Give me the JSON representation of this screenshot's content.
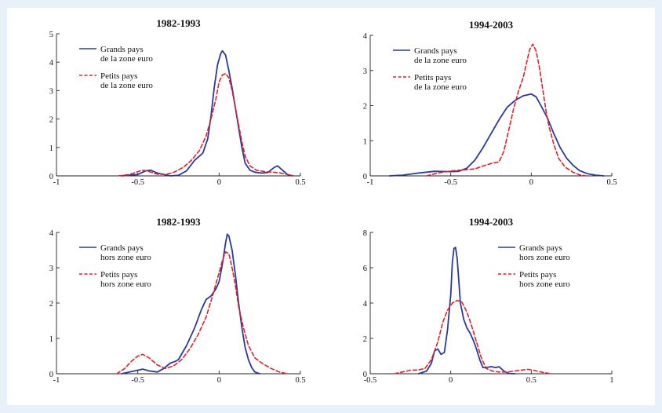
{
  "colors": {
    "series_solid": "#2a3a9c",
    "series_dashed": "#e0202a",
    "background": "#e8f0fa"
  },
  "chart_data": [
    {
      "type": "line",
      "title": "1982-1993",
      "xlim": [
        -1,
        0.5
      ],
      "ylim": [
        0,
        5
      ],
      "x_ticks": [
        "-1",
        "-0.5",
        "0",
        "0.5"
      ],
      "y_ticks": [
        "0",
        "1",
        "2",
        "3",
        "4",
        "5"
      ],
      "legend_position": "top-left",
      "series": [
        {
          "name": "Grands pays de la zone euro",
          "legend_lines": [
            "Grands pays",
            "de la zone euro"
          ],
          "style": "solid",
          "points": [
            [
              -0.6,
              0
            ],
            [
              -0.5,
              0.05
            ],
            [
              -0.45,
              0.18
            ],
            [
              -0.42,
              0.2
            ],
            [
              -0.38,
              0.1
            ],
            [
              -0.3,
              0
            ],
            [
              -0.25,
              0.02
            ],
            [
              -0.2,
              0.18
            ],
            [
              -0.15,
              0.55
            ],
            [
              -0.1,
              0.8
            ],
            [
              -0.07,
              1.3
            ],
            [
              -0.05,
              2.1
            ],
            [
              -0.03,
              3.1
            ],
            [
              -0.01,
              3.9
            ],
            [
              0.01,
              4.3
            ],
            [
              0.02,
              4.4
            ],
            [
              0.04,
              4.25
            ],
            [
              0.06,
              3.7
            ],
            [
              0.08,
              3.1
            ],
            [
              0.1,
              2.4
            ],
            [
              0.12,
              1.7
            ],
            [
              0.14,
              1.0
            ],
            [
              0.16,
              0.45
            ],
            [
              0.19,
              0.2
            ],
            [
              0.22,
              0.13
            ],
            [
              0.26,
              0.1
            ],
            [
              0.3,
              0.12
            ],
            [
              0.34,
              0.3
            ],
            [
              0.36,
              0.35
            ],
            [
              0.39,
              0.2
            ],
            [
              0.42,
              0.05
            ],
            [
              0.45,
              0
            ]
          ]
        },
        {
          "name": "Petits pays de la zone euro",
          "legend_lines": [
            "Petits pays",
            "de la zone euro"
          ],
          "style": "dashed",
          "points": [
            [
              -0.62,
              0
            ],
            [
              -0.55,
              0.05
            ],
            [
              -0.5,
              0.15
            ],
            [
              -0.47,
              0.2
            ],
            [
              -0.43,
              0.15
            ],
            [
              -0.38,
              0.06
            ],
            [
              -0.33,
              0.05
            ],
            [
              -0.28,
              0.12
            ],
            [
              -0.22,
              0.3
            ],
            [
              -0.17,
              0.55
            ],
            [
              -0.12,
              0.9
            ],
            [
              -0.08,
              1.4
            ],
            [
              -0.05,
              2.0
            ],
            [
              -0.02,
              2.7
            ],
            [
              0,
              3.3
            ],
            [
              0.02,
              3.55
            ],
            [
              0.04,
              3.6
            ],
            [
              0.06,
              3.45
            ],
            [
              0.08,
              3.0
            ],
            [
              0.1,
              2.4
            ],
            [
              0.12,
              1.8
            ],
            [
              0.14,
              1.2
            ],
            [
              0.16,
              0.7
            ],
            [
              0.19,
              0.35
            ],
            [
              0.23,
              0.2
            ],
            [
              0.28,
              0.15
            ],
            [
              0.33,
              0.13
            ],
            [
              0.38,
              0.1
            ],
            [
              0.42,
              0.05
            ],
            [
              0.46,
              0
            ]
          ]
        }
      ]
    },
    {
      "type": "line",
      "title": "1994-2003",
      "xlim": [
        -1,
        0.5
      ],
      "ylim": [
        0,
        4
      ],
      "x_ticks": [
        "-1",
        "-0.5",
        "0",
        "0.5"
      ],
      "y_ticks": [
        "0",
        "1",
        "2",
        "3",
        "4"
      ],
      "legend_position": "top-left",
      "series": [
        {
          "name": "Grands pays de la zone euro",
          "legend_lines": [
            "Grands pays",
            "de la zone euro"
          ],
          "style": "solid",
          "points": [
            [
              -0.88,
              0
            ],
            [
              -0.8,
              0.02
            ],
            [
              -0.7,
              0.08
            ],
            [
              -0.6,
              0.13
            ],
            [
              -0.5,
              0.12
            ],
            [
              -0.45,
              0.13
            ],
            [
              -0.4,
              0.22
            ],
            [
              -0.35,
              0.45
            ],
            [
              -0.3,
              0.8
            ],
            [
              -0.25,
              1.2
            ],
            [
              -0.2,
              1.6
            ],
            [
              -0.15,
              1.95
            ],
            [
              -0.1,
              2.15
            ],
            [
              -0.05,
              2.28
            ],
            [
              0,
              2.33
            ],
            [
              0.03,
              2.25
            ],
            [
              0.06,
              2.0
            ],
            [
              0.1,
              1.65
            ],
            [
              0.14,
              1.2
            ],
            [
              0.18,
              0.8
            ],
            [
              0.22,
              0.5
            ],
            [
              0.26,
              0.3
            ],
            [
              0.3,
              0.15
            ],
            [
              0.35,
              0.06
            ],
            [
              0.4,
              0.02
            ],
            [
              0.45,
              0
            ]
          ]
        },
        {
          "name": "Petits pays de la zone euro",
          "legend_lines": [
            "Petits pays",
            "de la zone euro"
          ],
          "style": "dashed",
          "points": [
            [
              -0.65,
              0
            ],
            [
              -0.58,
              0.08
            ],
            [
              -0.5,
              0.14
            ],
            [
              -0.42,
              0.17
            ],
            [
              -0.35,
              0.2
            ],
            [
              -0.3,
              0.28
            ],
            [
              -0.25,
              0.35
            ],
            [
              -0.2,
              0.4
            ],
            [
              -0.17,
              0.7
            ],
            [
              -0.14,
              1.3
            ],
            [
              -0.11,
              1.9
            ],
            [
              -0.08,
              2.4
            ],
            [
              -0.05,
              2.8
            ],
            [
              -0.03,
              3.2
            ],
            [
              -0.01,
              3.6
            ],
            [
              0.01,
              3.75
            ],
            [
              0.03,
              3.55
            ],
            [
              0.05,
              3.1
            ],
            [
              0.07,
              2.5
            ],
            [
              0.09,
              1.9
            ],
            [
              0.11,
              1.4
            ],
            [
              0.14,
              0.9
            ],
            [
              0.17,
              0.5
            ],
            [
              0.21,
              0.25
            ],
            [
              0.26,
              0.1
            ],
            [
              0.3,
              0.03
            ],
            [
              0.34,
              0
            ]
          ]
        }
      ]
    },
    {
      "type": "line",
      "title": "1982-1993",
      "xlim": [
        -1,
        0.5
      ],
      "ylim": [
        0,
        4
      ],
      "x_ticks": [
        "-1",
        "-0.5",
        "0",
        "0.5"
      ],
      "y_ticks": [
        "0",
        "1",
        "2",
        "3",
        "4"
      ],
      "legend_position": "top-left",
      "series": [
        {
          "name": "Grands pays hors zone euro",
          "legend_lines": [
            "Grands pays",
            "hors zone euro"
          ],
          "style": "solid",
          "points": [
            [
              -0.6,
              0
            ],
            [
              -0.55,
              0.05
            ],
            [
              -0.5,
              0.1
            ],
            [
              -0.47,
              0.13
            ],
            [
              -0.43,
              0.08
            ],
            [
              -0.38,
              0.05
            ],
            [
              -0.34,
              0.15
            ],
            [
              -0.3,
              0.3
            ],
            [
              -0.27,
              0.35
            ],
            [
              -0.25,
              0.4
            ],
            [
              -0.2,
              0.8
            ],
            [
              -0.15,
              1.3
            ],
            [
              -0.11,
              1.8
            ],
            [
              -0.08,
              2.1
            ],
            [
              -0.05,
              2.2
            ],
            [
              -0.02,
              2.4
            ],
            [
              0,
              2.6
            ],
            [
              0.02,
              3.1
            ],
            [
              0.04,
              3.7
            ],
            [
              0.05,
              3.95
            ],
            [
              0.06,
              3.9
            ],
            [
              0.08,
              3.5
            ],
            [
              0.1,
              2.8
            ],
            [
              0.12,
              2.0
            ],
            [
              0.14,
              1.3
            ],
            [
              0.16,
              0.75
            ],
            [
              0.18,
              0.4
            ],
            [
              0.2,
              0.18
            ],
            [
              0.22,
              0.05
            ],
            [
              0.25,
              0
            ]
          ]
        },
        {
          "name": "Petits pays hors zone euro",
          "legend_lines": [
            "Petits pays",
            "hors zone euro"
          ],
          "style": "dashed",
          "points": [
            [
              -0.63,
              0
            ],
            [
              -0.58,
              0.15
            ],
            [
              -0.54,
              0.35
            ],
            [
              -0.5,
              0.5
            ],
            [
              -0.47,
              0.55
            ],
            [
              -0.43,
              0.45
            ],
            [
              -0.38,
              0.25
            ],
            [
              -0.33,
              0.15
            ],
            [
              -0.28,
              0.22
            ],
            [
              -0.23,
              0.4
            ],
            [
              -0.18,
              0.7
            ],
            [
              -0.13,
              1.1
            ],
            [
              -0.08,
              1.6
            ],
            [
              -0.04,
              2.2
            ],
            [
              -0.01,
              2.7
            ],
            [
              0.02,
              3.2
            ],
            [
              0.04,
              3.45
            ],
            [
              0.06,
              3.4
            ],
            [
              0.08,
              3.0
            ],
            [
              0.1,
              2.5
            ],
            [
              0.12,
              1.9
            ],
            [
              0.15,
              1.3
            ],
            [
              0.18,
              0.8
            ],
            [
              0.22,
              0.45
            ],
            [
              0.27,
              0.28
            ],
            [
              0.32,
              0.15
            ],
            [
              0.37,
              0.05
            ],
            [
              0.42,
              0
            ]
          ]
        }
      ]
    },
    {
      "type": "line",
      "title": "1994-2003",
      "xlim": [
        -0.5,
        1
      ],
      "ylim": [
        0,
        8
      ],
      "x_ticks": [
        "-0.5",
        "0",
        "0.5",
        "1"
      ],
      "y_ticks": [
        "0",
        "2",
        "4",
        "6",
        "8"
      ],
      "legend_position": "top-right",
      "series": [
        {
          "name": "Grands pays hors zone euro",
          "legend_lines": [
            "Grands pays",
            "hors zone euro"
          ],
          "style": "solid",
          "points": [
            [
              -0.2,
              0
            ],
            [
              -0.15,
              0.15
            ],
            [
              -0.12,
              0.6
            ],
            [
              -0.1,
              1.3
            ],
            [
              -0.08,
              1.4
            ],
            [
              -0.06,
              1.1
            ],
            [
              -0.04,
              1.2
            ],
            [
              -0.02,
              2.5
            ],
            [
              0,
              4.5
            ],
            [
              0.01,
              6.3
            ],
            [
              0.02,
              7.1
            ],
            [
              0.03,
              7.15
            ],
            [
              0.04,
              6.5
            ],
            [
              0.05,
              5.3
            ],
            [
              0.06,
              4.0
            ],
            [
              0.08,
              3.1
            ],
            [
              0.1,
              2.6
            ],
            [
              0.12,
              2.3
            ],
            [
              0.14,
              1.9
            ],
            [
              0.16,
              1.4
            ],
            [
              0.18,
              0.8
            ],
            [
              0.2,
              0.35
            ],
            [
              0.22,
              0.35
            ],
            [
              0.25,
              0.4
            ],
            [
              0.28,
              0.35
            ],
            [
              0.3,
              0.4
            ],
            [
              0.33,
              0.15
            ],
            [
              0.36,
              0.02
            ],
            [
              0.4,
              0
            ]
          ]
        },
        {
          "name": "Petits pays hors zone euro",
          "legend_lines": [
            "Petits pays",
            "hors zone euro"
          ],
          "style": "dashed",
          "points": [
            [
              -0.35,
              0
            ],
            [
              -0.3,
              0.1
            ],
            [
              -0.25,
              0.2
            ],
            [
              -0.2,
              0.22
            ],
            [
              -0.16,
              0.3
            ],
            [
              -0.12,
              0.8
            ],
            [
              -0.08,
              1.8
            ],
            [
              -0.05,
              2.9
            ],
            [
              -0.02,
              3.6
            ],
            [
              0.01,
              4.0
            ],
            [
              0.04,
              4.15
            ],
            [
              0.07,
              4.05
            ],
            [
              0.1,
              3.5
            ],
            [
              0.13,
              2.7
            ],
            [
              0.16,
              1.8
            ],
            [
              0.19,
              0.9
            ],
            [
              0.22,
              0.3
            ],
            [
              0.26,
              0.15
            ],
            [
              0.3,
              0.1
            ],
            [
              0.35,
              0.1
            ],
            [
              0.42,
              0.18
            ],
            [
              0.48,
              0.25
            ],
            [
              0.52,
              0.18
            ],
            [
              0.57,
              0.08
            ],
            [
              0.62,
              0
            ]
          ]
        }
      ]
    }
  ]
}
